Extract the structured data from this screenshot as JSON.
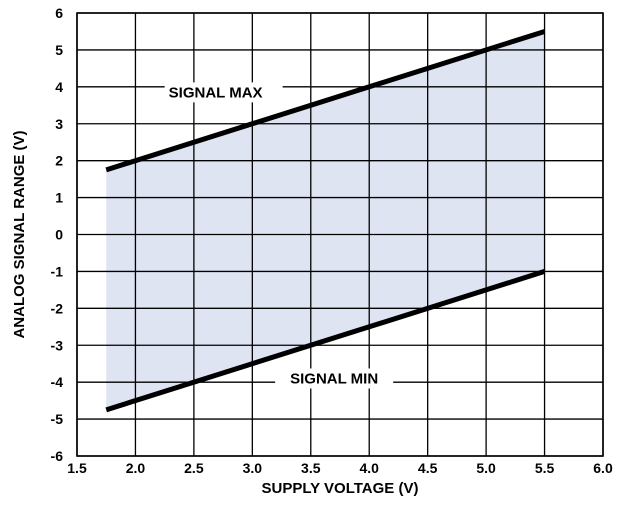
{
  "chart_data": {
    "type": "area",
    "xlabel": "SUPPLY VOLTAGE (V)",
    "ylabel": "ANALOG SIGNAL RANGE (V)",
    "xlim": [
      1.5,
      6.0
    ],
    "ylim": [
      -6,
      6
    ],
    "x_ticks": [
      "1.5",
      "2.0",
      "2.5",
      "3.0",
      "3.5",
      "4.0",
      "4.5",
      "5.0",
      "5.5",
      "6.0"
    ],
    "y_ticks": [
      "6",
      "5",
      "4",
      "3",
      "2",
      "1",
      "0",
      "-1",
      "-2",
      "-3",
      "-4",
      "-5",
      "-6"
    ],
    "grid": true,
    "fill_color": "#dfe4f2",
    "line_color": "#000000",
    "series": [
      {
        "name": "SIGNAL MAX",
        "x": [
          1.75,
          5.5
        ],
        "y": [
          1.75,
          5.5
        ]
      },
      {
        "name": "SIGNAL MIN",
        "x": [
          1.75,
          5.5
        ],
        "y": [
          -4.75,
          -1.0
        ]
      }
    ],
    "annotations": [
      {
        "text": "SIGNAL MAX",
        "series": "SIGNAL MAX"
      },
      {
        "text": "SIGNAL MIN",
        "series": "SIGNAL MIN"
      }
    ]
  }
}
